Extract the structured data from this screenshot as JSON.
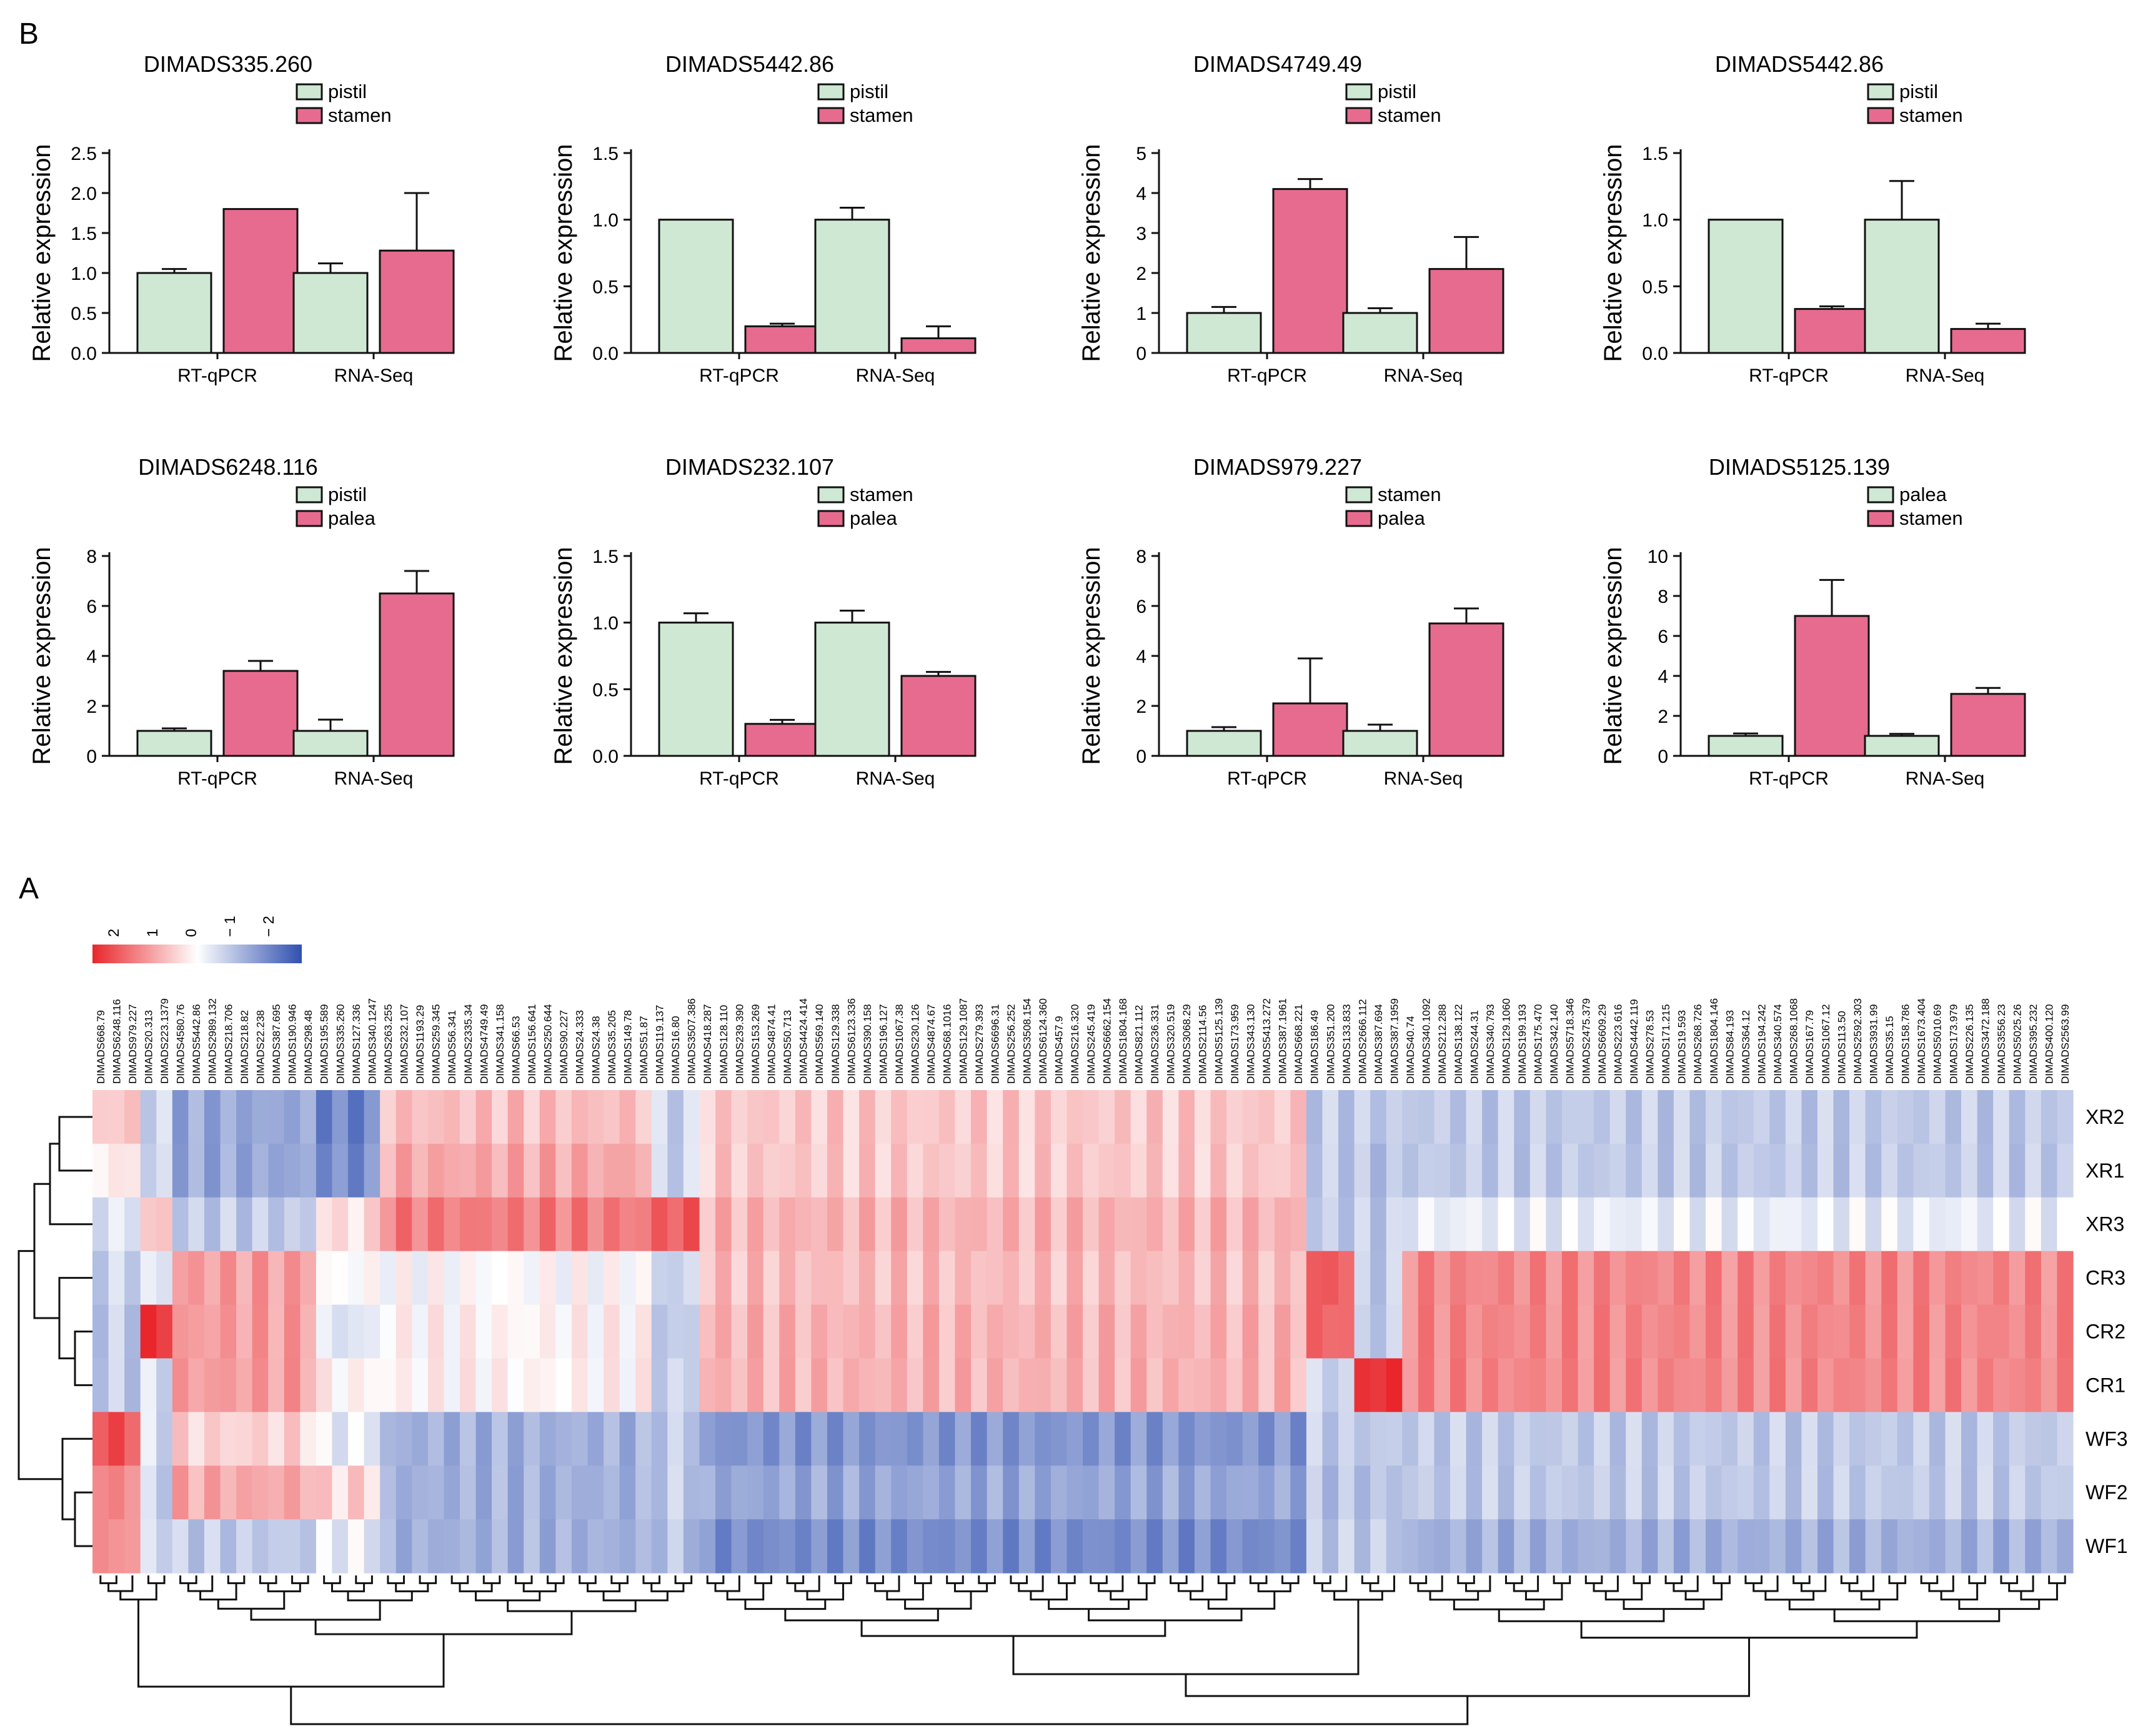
{
  "panel_labels": {
    "top": "B",
    "bottom": "A"
  },
  "chart_data": [
    {
      "type": "bar",
      "title": "DIMADS335.260",
      "ylabel": "Relative expression",
      "categories": [
        "RT-qPCR",
        "RNA-Seq"
      ],
      "ylim": [
        0,
        2.5
      ],
      "yticks": [
        "0.0",
        "0.5",
        "1.0",
        "1.5",
        "2.0",
        "2.5"
      ],
      "series": [
        {
          "name": "pistil",
          "color": "#cfe8d3",
          "values": [
            1.0,
            1.0
          ],
          "errors": [
            0.05,
            0.12
          ]
        },
        {
          "name": "stamen",
          "color": "#e66b8f",
          "values": [
            1.8,
            1.28
          ],
          "errors": [
            0,
            0.72
          ]
        }
      ]
    },
    {
      "type": "bar",
      "title": "DIMADS5442.86",
      "ylabel": "Relative expression",
      "categories": [
        "RT-qPCR",
        "RNA-Seq"
      ],
      "ylim": [
        0,
        1.5
      ],
      "yticks": [
        "0.0",
        "0.5",
        "1.0",
        "1.5"
      ],
      "series": [
        {
          "name": "pistil",
          "color": "#cfe8d3",
          "values": [
            1.0,
            1.0
          ],
          "errors": [
            0,
            0.09
          ]
        },
        {
          "name": "stamen",
          "color": "#e66b8f",
          "values": [
            0.2,
            0.11
          ],
          "errors": [
            0.02,
            0.09
          ]
        }
      ]
    },
    {
      "type": "bar",
      "title": "DIMADS4749.49",
      "ylabel": "Relative expression",
      "categories": [
        "RT-qPCR",
        "RNA-Seq"
      ],
      "ylim": [
        0,
        5
      ],
      "yticks": [
        "0",
        "1",
        "2",
        "3",
        "4",
        "5"
      ],
      "series": [
        {
          "name": "pistil",
          "color": "#cfe8d3",
          "values": [
            1.0,
            1.0
          ],
          "errors": [
            0.15,
            0.12
          ]
        },
        {
          "name": "stamen",
          "color": "#e66b8f",
          "values": [
            4.1,
            2.1
          ],
          "errors": [
            0.25,
            0.8
          ]
        }
      ]
    },
    {
      "type": "bar",
      "title": "DIMADS5442.86",
      "ylabel": "Relative expression",
      "categories": [
        "RT-qPCR",
        "RNA-Seq"
      ],
      "ylim": [
        0,
        1.5
      ],
      "yticks": [
        "0.0",
        "0.5",
        "1.0",
        "1.5"
      ],
      "series": [
        {
          "name": "pistil",
          "color": "#cfe8d3",
          "values": [
            1.0,
            1.0
          ],
          "errors": [
            0,
            0.29
          ]
        },
        {
          "name": "stamen",
          "color": "#e66b8f",
          "values": [
            0.33,
            0.18
          ],
          "errors": [
            0.02,
            0.04
          ]
        }
      ]
    },
    {
      "type": "bar",
      "title": "DIMADS6248.116",
      "ylabel": "Relative expression",
      "categories": [
        "RT-qPCR",
        "RNA-Seq"
      ],
      "ylim": [
        0,
        8
      ],
      "yticks": [
        "0",
        "2",
        "4",
        "6",
        "8"
      ],
      "series": [
        {
          "name": "pistil",
          "color": "#cfe8d3",
          "values": [
            1.0,
            1.0
          ],
          "errors": [
            0.1,
            0.45
          ]
        },
        {
          "name": "palea",
          "color": "#e66b8f",
          "values": [
            3.4,
            6.5
          ],
          "errors": [
            0.4,
            0.9
          ]
        }
      ]
    },
    {
      "type": "bar",
      "title": "DIMADS232.107",
      "ylabel": "Relative expression",
      "categories": [
        "RT-qPCR",
        "RNA-Seq"
      ],
      "ylim": [
        0,
        1.5
      ],
      "yticks": [
        "0.0",
        "0.5",
        "1.0",
        "1.5"
      ],
      "series": [
        {
          "name": "stamen",
          "color": "#cfe8d3",
          "values": [
            1.0,
            1.0
          ],
          "errors": [
            0.07,
            0.09
          ]
        },
        {
          "name": "palea",
          "color": "#e66b8f",
          "values": [
            0.24,
            0.6
          ],
          "errors": [
            0.03,
            0.03
          ]
        }
      ]
    },
    {
      "type": "bar",
      "title": "DIMADS979.227",
      "ylabel": "Relative expression",
      "categories": [
        "RT-qPCR",
        "RNA-Seq"
      ],
      "ylim": [
        0,
        8
      ],
      "yticks": [
        "0",
        "2",
        "4",
        "6",
        "8"
      ],
      "series": [
        {
          "name": "stamen",
          "color": "#cfe8d3",
          "values": [
            1.0,
            1.0
          ],
          "errors": [
            0.15,
            0.25
          ]
        },
        {
          "name": "palea",
          "color": "#e66b8f",
          "values": [
            2.1,
            5.3
          ],
          "errors": [
            1.8,
            0.6
          ]
        }
      ]
    },
    {
      "type": "bar",
      "title": "DIMADS5125.139",
      "ylabel": "Relative expression",
      "categories": [
        "RT-qPCR",
        "RNA-Seq"
      ],
      "ylim": [
        0,
        10
      ],
      "yticks": [
        "0",
        "2",
        "4",
        "6",
        "8",
        "10"
      ],
      "series": [
        {
          "name": "palea",
          "color": "#cfe8d3",
          "values": [
            1.0,
            1.0
          ],
          "errors": [
            0.12,
            0.1
          ]
        },
        {
          "name": "stamen",
          "color": "#e66b8f",
          "values": [
            7.0,
            3.1
          ],
          "errors": [
            1.8,
            0.3
          ]
        }
      ]
    },
    {
      "type": "heatmap",
      "color_scale": {
        "ticks": [
          "2",
          "1",
          "0",
          "− 1",
          "− 2"
        ],
        "colors": [
          "#e8262b",
          "#ffffff",
          "#3050b0"
        ],
        "range": [
          2,
          -2
        ]
      },
      "rows": [
        "XR2",
        "XR1",
        "XR3",
        "CR3",
        "CR2",
        "CR1",
        "WF3",
        "WF2",
        "WF1"
      ],
      "columns": [
        "DIMADS668.79",
        "DIMADS6248.116",
        "DIMADS979.227",
        "DIMADS20.313",
        "DIMADS223.1379",
        "DIMADS4580.76",
        "DIMADS5442.86",
        "DIMADS2989.132",
        "DIMADS218.706",
        "DIMADS218.82",
        "DIMADS22.238",
        "DIMADS387.695",
        "DIMADS190.946",
        "DIMADS298.48",
        "DIMADS195.589",
        "DIMADS335.260",
        "DIMADS127.336",
        "DIMADS340.1247",
        "DIMADS263.255",
        "DIMADS232.107",
        "DIMADS1193.29",
        "DIMADS259.345",
        "DIMADS56.341",
        "DIMADS2335.34",
        "DIMADS4749.49",
        "DIMADS341.158",
        "DIMADS66.53",
        "DIMADS156.641",
        "DIMADS250.644",
        "DIMADS90.227",
        "DIMADS24.333",
        "DIMADS24.38",
        "DIMADS35.205",
        "DIMADS149.78",
        "DIMADS51.87",
        "DIMADS119.137",
        "DIMADS16.80",
        "DIMADS3507.386",
        "DIMADS418.287",
        "DIMADS128.110",
        "DIMADS239.390",
        "DIMADS153.269",
        "DIMADS4874.41",
        "DIMADS50.713",
        "DIMADS4424.414",
        "DIMADS569.140",
        "DIMADS129.338",
        "DIMADS6123.336",
        "DIMADS390.158",
        "DIMADS196.127",
        "DIMADS1067.38",
        "DIMADS230.126",
        "DIMADS4874.67",
        "DIMADS68.1016",
        "DIMADS129.1087",
        "DIMADS279.393",
        "DIMADS6696.31",
        "DIMADS256.252",
        "DIMADS3508.154",
        "DIMADS6124.360",
        "DIMADS457.9",
        "DIMADS216.320",
        "DIMADS245.419",
        "DIMADS6662.154",
        "DIMADS1804.168",
        "DIMADS821.112",
        "DIMADS236.331",
        "DIMADS320.519",
        "DIMADS3068.29",
        "DIMADS2114.56",
        "DIMADS5125.139",
        "DIMADS173.959",
        "DIMADS343.130",
        "DIMADS5413.272",
        "DIMADS387.1961",
        "DIMADS668.221",
        "DIMADS186.49",
        "DIMADS351.200",
        "DIMADS133.833",
        "DIMADS2666.112",
        "DIMADS387.694",
        "DIMADS387.1959",
        "DIMADS40.74",
        "DIMADS340.1092",
        "DIMADS212.288",
        "DIMADS138.122",
        "DIMADS244.31",
        "DIMADS340.793",
        "DIMADS129.1060",
        "DIMADS199.193",
        "DIMADS175.470",
        "DIMADS342.140",
        "DIMADS5718.346",
        "DIMADS2475.379",
        "DIMADS6609.29",
        "DIMADS223.616",
        "DIMADS4442.119",
        "DIMADS278.53",
        "DIMADS171.215",
        "DIMADS19.593",
        "DIMADS268.726",
        "DIMADS1804.146",
        "DIMADS84.193",
        "DIMADS364.12",
        "DIMADS194.242",
        "DIMADS340.574",
        "DIMADS268.1068",
        "DIMADS167.79",
        "DIMADS1067.12",
        "DIMADS113.50",
        "DIMADS2592.303",
        "DIMADS3931.99",
        "DIMADS35.15",
        "DIMADS158.786",
        "DIMADS1673.404",
        "DIMADS5010.69",
        "DIMADS173.979",
        "DIMADS226.135",
        "DIMADS3472.188",
        "DIMADS3556.23",
        "DIMADS5025.26",
        "DIMADS395.232",
        "DIMADS400.120",
        "DIMADS2563.99"
      ],
      "group_profiles": [
        {
          "from": 0,
          "to": 2,
          "values": [
            0.5,
            0.2,
            -0.3,
            -0.5,
            -0.6,
            -0.6,
            1.6,
            1.1,
            1.0
          ]
        },
        {
          "from": 3,
          "to": 4,
          "values": [
            -0.5,
            -0.5,
            0.5,
            -0.3,
            1.9,
            -0.4,
            -0.4,
            -0.5,
            -0.4
          ]
        },
        {
          "from": 5,
          "to": 13,
          "values": [
            -1.0,
            -1.0,
            -0.6,
            0.9,
            0.9,
            0.9,
            0.4,
            0.8,
            -0.6
          ]
        },
        {
          "from": 14,
          "to": 17,
          "values": [
            -1.4,
            -1.3,
            0.3,
            0.0,
            -0.3,
            0.1,
            -0.2,
            0.4,
            -0.2
          ]
        },
        {
          "from": 18,
          "to": 34,
          "values": [
            0.6,
            0.8,
            1.2,
            0.0,
            0.1,
            0.1,
            -0.9,
            -0.9,
            -0.9
          ]
        },
        {
          "from": 35,
          "to": 37,
          "values": [
            -0.5,
            -0.5,
            1.5,
            -0.5,
            -0.6,
            -0.5,
            -0.6,
            -0.6,
            -0.7
          ]
        },
        {
          "from": 38,
          "to": 75,
          "values": [
            0.5,
            0.5,
            0.7,
            0.6,
            0.7,
            0.7,
            -1.2,
            -1.0,
            -1.3
          ]
        },
        {
          "from": 76,
          "to": 78,
          "values": [
            -0.6,
            -0.6,
            -0.6,
            1.5,
            1.4,
            -0.5,
            -0.6,
            -0.7,
            -0.6
          ]
        },
        {
          "from": 79,
          "to": 81,
          "values": [
            -0.6,
            -0.7,
            -0.6,
            -0.6,
            -0.6,
            1.9,
            -0.6,
            -0.7,
            -0.6
          ]
        },
        {
          "from": 82,
          "to": 123,
          "values": [
            -0.6,
            -0.6,
            -0.2,
            1.1,
            1.1,
            1.1,
            -0.6,
            -0.6,
            -0.9
          ]
        }
      ]
    }
  ]
}
